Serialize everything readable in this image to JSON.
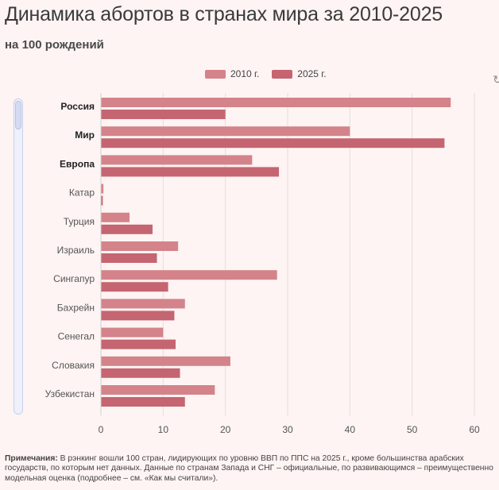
{
  "title": "Динамика абортов в странах мира за 2010-2025",
  "subtitle": "на 100 рождений",
  "chart_data": {
    "type": "bar",
    "orientation": "horizontal",
    "categories": [
      "Россия",
      "Мир",
      "Европа",
      "Катар",
      "Турция",
      "Израиль",
      "Сингапур",
      "Бахрейн",
      "Сенегал",
      "Словакия",
      "Узбекистан"
    ],
    "bold_categories": [
      "Россия",
      "Мир",
      "Европа"
    ],
    "series": [
      {
        "name": "2010 г.",
        "color": "#d4838a",
        "values": [
          56.2,
          40,
          24.3,
          0.4,
          4.6,
          12.4,
          28.3,
          13.5,
          10,
          20.8,
          18.3
        ]
      },
      {
        "name": "2025 г.",
        "color": "#c56571",
        "values": [
          20,
          55.2,
          28.6,
          0.3,
          8.3,
          9,
          10.8,
          11.8,
          12,
          12.7,
          13.5
        ]
      }
    ],
    "xlim": [
      0,
      60
    ],
    "xticks": [
      "0",
      "10",
      "20",
      "30",
      "40",
      "50",
      "60"
    ],
    "grid": true,
    "legend_position": "top"
  },
  "note": {
    "label": "Примечания:",
    "text": " В рэнкинг вошли 100 стран, лидирующих по уровню ВВП по ППС на 2025 г., кроме большинства арабских государств, по которым нет данных. Данные по странам Запада и СНГ – официальные, по развивающимся – преимущественно модельная оценка (подробнее – см. «Как мы считали»)."
  }
}
